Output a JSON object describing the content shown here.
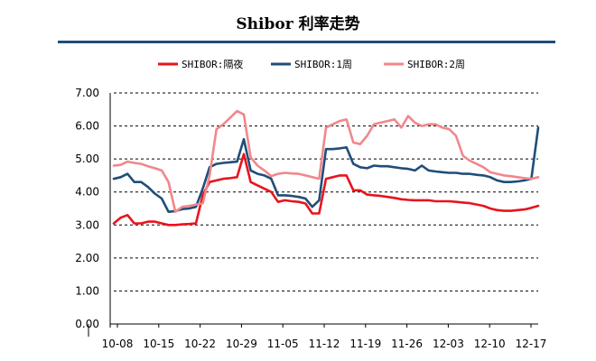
{
  "chart_data": {
    "type": "line",
    "title": "Shibor 利率走势",
    "xlabel": "",
    "ylabel": "",
    "ylim": [
      0,
      7
    ],
    "yticks": [
      "7.00",
      "6.00",
      "5.00",
      "4.00",
      "3.00",
      "2.00",
      "1.00",
      "0.00"
    ],
    "xtick_labels": [
      "10-08",
      "10-15",
      "10-22",
      "10-29",
      "11-05",
      "11-12",
      "11-19",
      "11-26",
      "12-03",
      "12-10",
      "12-17"
    ],
    "grid": "horizontal dashed",
    "legend_position": "top",
    "series": [
      {
        "name": "SHIBOR:隔夜",
        "color": "#e8141c",
        "values": [
          3.05,
          3.22,
          3.3,
          3.05,
          3.05,
          3.1,
          3.1,
          3.05,
          3.0,
          3.0,
          3.02,
          3.03,
          3.05,
          3.9,
          4.3,
          4.35,
          4.4,
          4.42,
          4.45,
          5.15,
          4.3,
          4.2,
          4.1,
          4.0,
          3.7,
          3.75,
          3.72,
          3.7,
          3.65,
          3.35,
          3.35,
          4.4,
          4.45,
          4.5,
          4.5,
          4.05,
          4.05,
          3.92,
          3.9,
          3.88,
          3.85,
          3.82,
          3.78,
          3.76,
          3.75,
          3.75,
          3.75,
          3.72,
          3.72,
          3.72,
          3.7,
          3.68,
          3.66,
          3.62,
          3.58,
          3.5,
          3.45,
          3.43,
          3.43,
          3.45,
          3.47,
          3.52,
          3.58
        ]
      },
      {
        "name": "SHIBOR:1周",
        "color": "#1f4e79",
        "values": [
          4.4,
          4.45,
          4.55,
          4.3,
          4.3,
          4.15,
          3.95,
          3.8,
          3.4,
          3.42,
          3.48,
          3.5,
          3.55,
          4.1,
          4.75,
          4.85,
          4.88,
          4.9,
          4.92,
          5.6,
          4.65,
          4.55,
          4.5,
          4.4,
          3.9,
          3.9,
          3.88,
          3.85,
          3.8,
          3.55,
          3.75,
          5.3,
          5.3,
          5.32,
          5.35,
          4.85,
          4.75,
          4.72,
          4.8,
          4.78,
          4.78,
          4.75,
          4.72,
          4.7,
          4.65,
          4.8,
          4.65,
          4.62,
          4.6,
          4.58,
          4.58,
          4.55,
          4.55,
          4.52,
          4.5,
          4.45,
          4.35,
          4.3,
          4.3,
          4.32,
          4.35,
          4.4,
          5.95
        ]
      },
      {
        "name": "SHIBOR:2周",
        "color": "#f1878c",
        "values": [
          4.8,
          4.82,
          4.92,
          4.88,
          4.85,
          4.78,
          4.72,
          4.65,
          4.3,
          3.4,
          3.55,
          3.58,
          3.62,
          3.65,
          4.5,
          5.9,
          6.05,
          6.25,
          6.45,
          6.35,
          5.05,
          4.8,
          4.65,
          4.48,
          4.55,
          4.58,
          4.56,
          4.55,
          4.5,
          4.45,
          4.4,
          5.95,
          6.05,
          6.15,
          6.2,
          5.5,
          5.45,
          5.7,
          6.05,
          6.1,
          6.15,
          6.2,
          5.95,
          6.3,
          6.1,
          6.0,
          6.05,
          6.05,
          5.95,
          5.9,
          5.7,
          5.1,
          4.95,
          4.85,
          4.75,
          4.6,
          4.55,
          4.5,
          4.48,
          4.45,
          4.42,
          4.4,
          4.45
        ]
      }
    ]
  }
}
